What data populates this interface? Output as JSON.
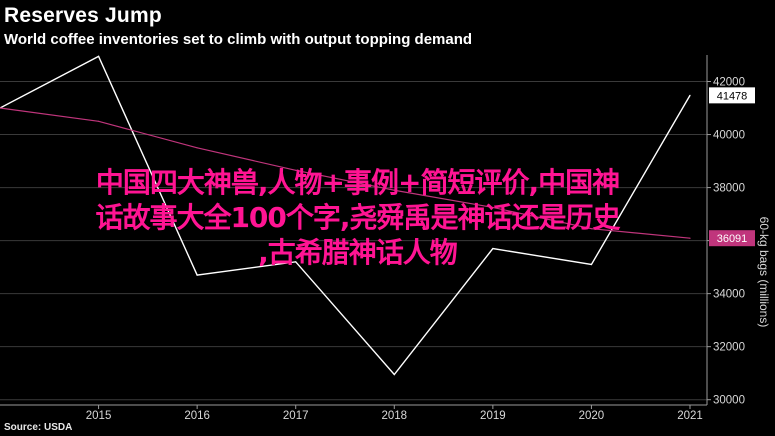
{
  "header": {
    "title": "Reserves Jump",
    "subtitle": "World coffee inventories set to climb with output topping demand",
    "source": "Source: USDA"
  },
  "overlay": {
    "line1": "中国四大神兽,人物+事例+简短评价,中国神",
    "line2": "话故事大全100个字,尧舜禹是神话还是历史",
    "line3": ",古希腊神话人物"
  },
  "chart_data": {
    "type": "line",
    "title": "Reserves Jump",
    "subtitle": "World coffee inventories set to climb with output topping demand",
    "xlabel": "",
    "ylabel": "60-kg bags (millions)",
    "x": [
      2014,
      2015,
      2016,
      2017,
      2018,
      2019,
      2020,
      2021
    ],
    "x_tick_labels": [
      "2015",
      "2016",
      "2017",
      "2018",
      "2019",
      "2020",
      "2021"
    ],
    "y_ticks": [
      30000,
      32000,
      34000,
      36000,
      38000,
      40000,
      42000
    ],
    "y_tick_labels": [
      "30000",
      "32000",
      "34000",
      "36000",
      "38000",
      "40000",
      "42000"
    ],
    "ylim": [
      29800,
      43000
    ],
    "grid": "horizontal",
    "y_axis_side": "right",
    "series": [
      {
        "name": "",
        "color": "#ffffff",
        "values": [
          41000,
          42950,
          34700,
          35200,
          30950,
          35700,
          35100,
          41478
        ],
        "end_label": "41478"
      },
      {
        "name": "",
        "color": "#c0357c",
        "values": [
          41000,
          40500,
          39500,
          38650,
          37900,
          37250,
          36450,
          36091
        ],
        "end_label": "36091"
      }
    ]
  }
}
